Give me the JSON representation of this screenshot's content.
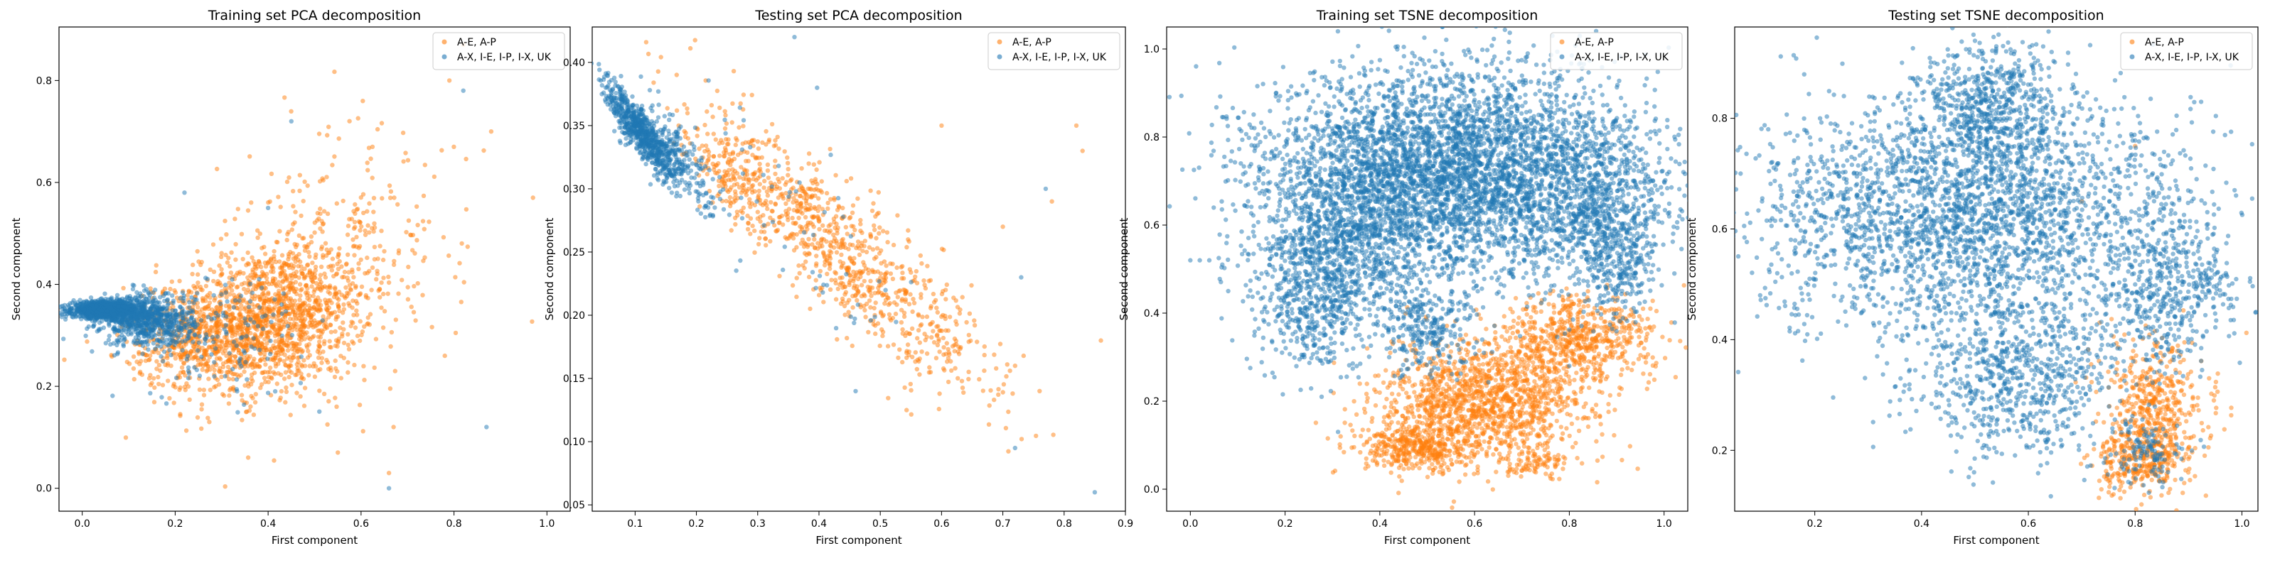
{
  "figure": {
    "colors": {
      "series_a": "#ff7f0e",
      "series_b": "#1f77b4"
    }
  },
  "chart_data": [
    {
      "type": "scatter",
      "title": "Training set PCA decomposition",
      "xlabel": "First component",
      "ylabel": "Second component",
      "xlim": [
        -0.05,
        1.05
      ],
      "ylim": [
        -0.045,
        0.905
      ],
      "xticks": [
        "0.0",
        "0.2",
        "0.4",
        "0.6",
        "0.8",
        "1.0"
      ],
      "yticks": [
        "0.0",
        "0.2",
        "0.4",
        "0.6",
        "0.8"
      ],
      "grid": false,
      "legend_position": "top-right",
      "series": [
        {
          "name": "A-E, A-P",
          "color": "#ff7f0e",
          "clusters": [
            {
              "cx": 0.4,
              "cy": 0.33,
              "sx": 0.11,
              "sy": 0.07,
              "n": 1400,
              "rot": 0.25
            },
            {
              "cx": 0.55,
              "cy": 0.46,
              "sx": 0.13,
              "sy": 0.12,
              "n": 300,
              "rot": 0.6
            },
            {
              "cx": 0.25,
              "cy": 0.3,
              "sx": 0.08,
              "sy": 0.05,
              "n": 400,
              "rot": 0
            }
          ],
          "points": [
            [
              0.97,
              0.57
            ],
            [
              0.88,
              0.7
            ],
            [
              0.82,
              0.87
            ],
            [
              0.79,
              0.8
            ],
            [
              0.66,
              0.03
            ],
            [
              0.55,
              0.07
            ],
            [
              0.67,
              0.12
            ]
          ]
        },
        {
          "name": "A-X, I-E, I-P, I-X, UK",
          "color": "#1f77b4",
          "clusters": [
            {
              "cx": 0.05,
              "cy": 0.35,
              "sx": 0.035,
              "sy": 0.008,
              "n": 1300,
              "rot": 0
            },
            {
              "cx": 0.14,
              "cy": 0.33,
              "sx": 0.05,
              "sy": 0.025,
              "n": 700,
              "rot": 0
            },
            {
              "cx": 0.3,
              "cy": 0.3,
              "sx": 0.09,
              "sy": 0.06,
              "n": 140,
              "rot": 0
            }
          ],
          "points": [
            [
              0.87,
              0.12
            ],
            [
              0.66,
              0.0
            ],
            [
              0.45,
              0.72
            ],
            [
              0.22,
              0.58
            ],
            [
              0.82,
              0.78
            ],
            [
              0.4,
              0.55
            ]
          ]
        }
      ]
    },
    {
      "type": "scatter",
      "title": "Testing set PCA decomposition",
      "xlabel": "First component",
      "ylabel": "Second component",
      "xlim": [
        0.03,
        0.9
      ],
      "ylim": [
        0.045,
        0.428
      ],
      "xticks": [
        "0.1",
        "0.2",
        "0.3",
        "0.4",
        "0.5",
        "0.6",
        "0.7",
        "0.8",
        "0.9"
      ],
      "yticks": [
        "0.05",
        "0.10",
        "0.15",
        "0.20",
        "0.25",
        "0.30",
        "0.35",
        "0.40"
      ],
      "grid": false,
      "legend_position": "top-right",
      "series": [
        {
          "name": "A-E, A-P",
          "color": "#ff7f0e",
          "clusters": [
            {
              "cx": 0.4,
              "cy": 0.265,
              "sx": 0.1,
              "sy": 0.022,
              "n": 650,
              "rot": -0.47
            },
            {
              "cx": 0.58,
              "cy": 0.2,
              "sx": 0.09,
              "sy": 0.025,
              "n": 220,
              "rot": -0.47
            },
            {
              "cx": 0.25,
              "cy": 0.31,
              "sx": 0.04,
              "sy": 0.012,
              "n": 150,
              "rot": -0.5
            }
          ],
          "points": [
            [
              0.86,
              0.18
            ],
            [
              0.82,
              0.35
            ],
            [
              0.83,
              0.33
            ],
            [
              0.78,
              0.29
            ],
            [
              0.7,
              0.27
            ],
            [
              0.72,
              0.16
            ],
            [
              0.6,
              0.35
            ],
            [
              0.76,
              0.14
            ]
          ]
        },
        {
          "name": "A-X, I-E, I-P, I-X, UK",
          "color": "#1f77b4",
          "clusters": [
            {
              "cx": 0.11,
              "cy": 0.345,
              "sx": 0.035,
              "sy": 0.008,
              "n": 700,
              "rot": -0.55
            },
            {
              "cx": 0.18,
              "cy": 0.32,
              "sx": 0.04,
              "sy": 0.012,
              "n": 180,
              "rot": -0.55
            },
            {
              "cx": 0.38,
              "cy": 0.26,
              "sx": 0.1,
              "sy": 0.03,
              "n": 50,
              "rot": -0.5
            }
          ],
          "points": [
            [
              0.36,
              0.42
            ],
            [
              0.85,
              0.06
            ],
            [
              0.72,
              0.095
            ],
            [
              0.77,
              0.3
            ],
            [
              0.73,
              0.23
            ]
          ]
        }
      ]
    },
    {
      "type": "scatter",
      "title": "Training set TSNE decomposition",
      "xlabel": "First component",
      "ylabel": "Second component",
      "xlim": [
        -0.05,
        1.05
      ],
      "ylim": [
        -0.05,
        1.05
      ],
      "xticks": [
        "0.0",
        "0.2",
        "0.4",
        "0.6",
        "0.8",
        "1.0"
      ],
      "yticks": [
        "0.0",
        "0.2",
        "0.4",
        "0.6",
        "0.8",
        "1.0"
      ],
      "grid": false,
      "legend_position": "top-right",
      "series": [
        {
          "name": "A-E, A-P",
          "color": "#ff7f0e",
          "clusters": [
            {
              "cx": 0.62,
              "cy": 0.2,
              "sx": 0.11,
              "sy": 0.07,
              "n": 1400,
              "rot": 0.15
            },
            {
              "cx": 0.82,
              "cy": 0.34,
              "sx": 0.08,
              "sy": 0.05,
              "n": 600,
              "rot": 0
            },
            {
              "cx": 0.48,
              "cy": 0.09,
              "sx": 0.06,
              "sy": 0.025,
              "n": 350,
              "rot": 0
            },
            {
              "cx": 0.73,
              "cy": 0.06,
              "sx": 0.03,
              "sy": 0.015,
              "n": 80,
              "rot": 0
            }
          ],
          "points": []
        },
        {
          "name": "A-X, I-E, I-P, I-X, UK",
          "color": "#1f77b4",
          "clusters": [
            {
              "cx": 0.55,
              "cy": 0.72,
              "sx": 0.19,
              "sy": 0.12,
              "n": 4200,
              "rot": 0
            },
            {
              "cx": 0.33,
              "cy": 0.56,
              "sx": 0.09,
              "sy": 0.1,
              "n": 900,
              "rot": 0
            },
            {
              "cx": 0.85,
              "cy": 0.65,
              "sx": 0.07,
              "sy": 0.1,
              "n": 700,
              "rot": 0
            },
            {
              "cx": 0.25,
              "cy": 0.42,
              "sx": 0.06,
              "sy": 0.08,
              "n": 400,
              "rot": 0
            },
            {
              "cx": 0.5,
              "cy": 0.36,
              "sx": 0.05,
              "sy": 0.05,
              "n": 250,
              "rot": 0
            },
            {
              "cx": 0.92,
              "cy": 0.52,
              "sx": 0.03,
              "sy": 0.06,
              "n": 200,
              "rot": 0
            }
          ],
          "points": [
            [
              0.0,
              0.52
            ],
            [
              0.02,
              0.52
            ],
            [
              0.04,
              0.52
            ],
            [
              0.06,
              0.525
            ],
            [
              0.08,
              0.45
            ]
          ]
        }
      ]
    },
    {
      "type": "scatter",
      "title": "Testing set TSNE decomposition",
      "xlabel": "First component",
      "ylabel": "Second component",
      "xlim": [
        0.05,
        1.03
      ],
      "ylim": [
        0.09,
        0.965
      ],
      "xticks": [
        "0.2",
        "0.4",
        "0.6",
        "0.8",
        "1.0"
      ],
      "yticks": [
        "0.2",
        "0.4",
        "0.6",
        "0.8"
      ],
      "grid": false,
      "legend_position": "top-right",
      "series": [
        {
          "name": "A-E, A-P",
          "color": "#ff7f0e",
          "clusters": [
            {
              "cx": 0.84,
              "cy": 0.27,
              "sx": 0.05,
              "sy": 0.06,
              "n": 500,
              "rot": 0
            },
            {
              "cx": 0.8,
              "cy": 0.18,
              "sx": 0.04,
              "sy": 0.03,
              "n": 250,
              "rot": 0
            }
          ],
          "points": [
            [
              0.8,
              0.75
            ],
            [
              0.7,
              0.65
            ]
          ]
        },
        {
          "name": "A-X, I-E, I-P, I-X, UK",
          "color": "#1f77b4",
          "clusters": [
            {
              "cx": 0.48,
              "cy": 0.62,
              "sx": 0.2,
              "sy": 0.11,
              "n": 2800,
              "rot": 0
            },
            {
              "cx": 0.53,
              "cy": 0.82,
              "sx": 0.07,
              "sy": 0.06,
              "n": 600,
              "rot": 0
            },
            {
              "cx": 0.58,
              "cy": 0.33,
              "sx": 0.09,
              "sy": 0.07,
              "n": 700,
              "rot": 0
            },
            {
              "cx": 0.85,
              "cy": 0.5,
              "sx": 0.06,
              "sy": 0.08,
              "n": 400,
              "rot": 0
            },
            {
              "cx": 0.82,
              "cy": 0.2,
              "sx": 0.04,
              "sy": 0.03,
              "n": 120,
              "rot": 0
            },
            {
              "cx": 0.95,
              "cy": 0.5,
              "sx": 0.03,
              "sy": 0.03,
              "n": 60,
              "rot": 0
            }
          ],
          "points": [
            [
              0.8,
              0.76
            ],
            [
              0.97,
              0.52
            ],
            [
              0.54,
              0.93
            ],
            [
              0.5,
              0.94
            ]
          ]
        }
      ]
    }
  ]
}
